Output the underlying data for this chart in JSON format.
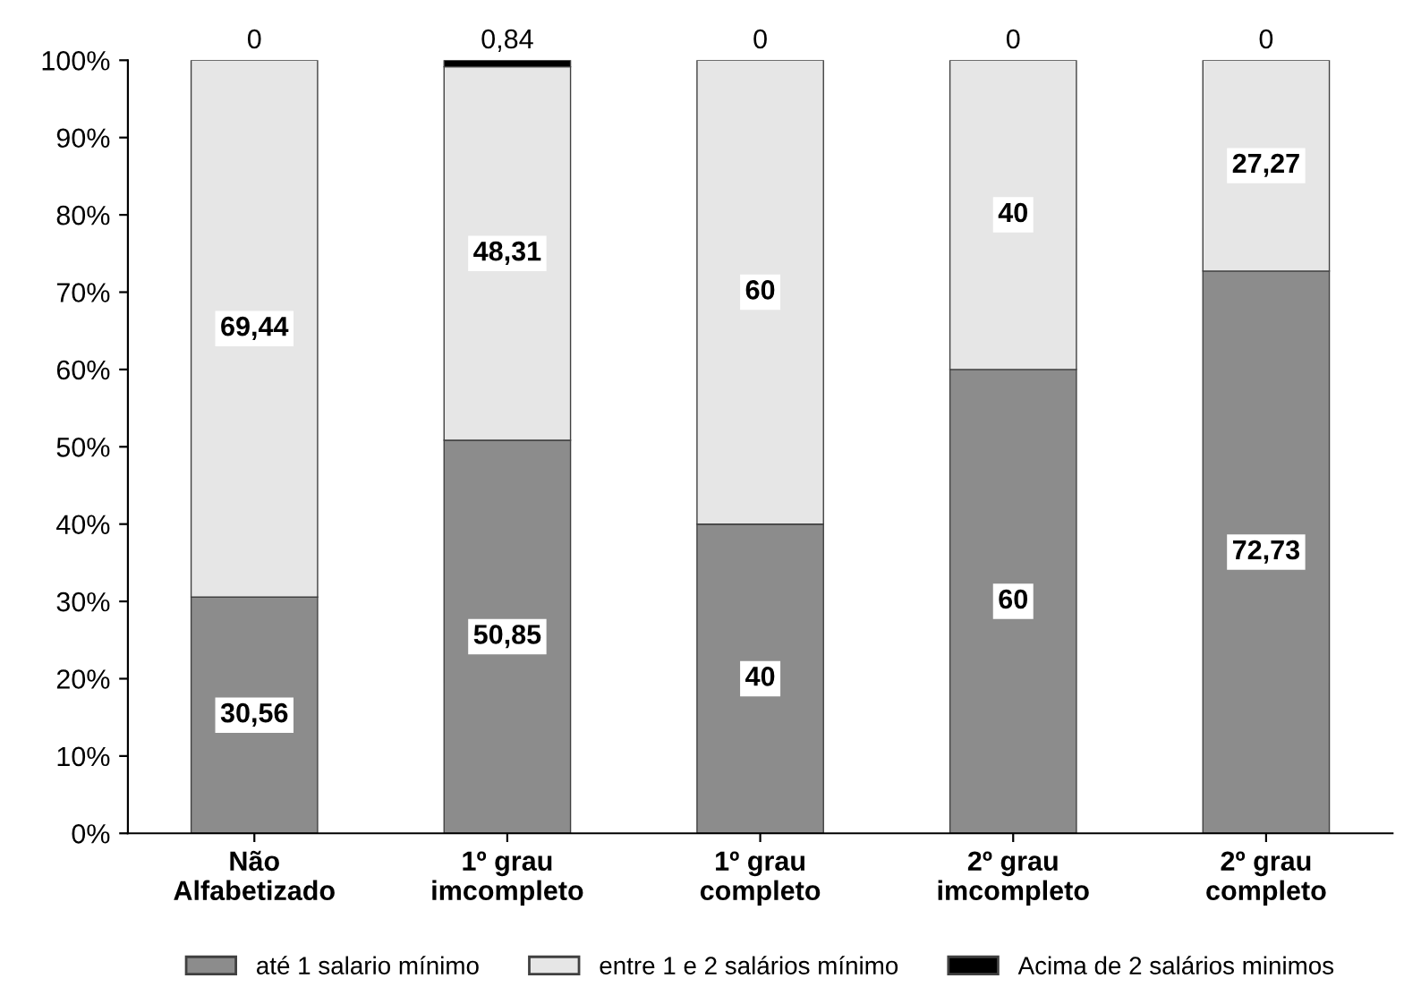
{
  "chart_data": {
    "type": "bar",
    "stacked": true,
    "categories": [
      "Não\nAlfabetizado",
      "1º grau\nimcompleto",
      "1º grau\ncompleto",
      "2º grau\nimcompleto",
      "2º grau\ncompleto"
    ],
    "series": [
      {
        "name": "até 1 salario mínimo",
        "color": "#8c8c8c",
        "values": [
          30.56,
          50.85,
          40,
          60,
          72.73
        ],
        "value_labels": [
          "30,56",
          "50,85",
          "40",
          "60",
          "72,73"
        ]
      },
      {
        "name": "entre 1 e 2 salários mínimo",
        "color": "#e6e6e6",
        "values": [
          69.44,
          48.31,
          60,
          40,
          27.27
        ],
        "value_labels": [
          "69,44",
          "48,31",
          "60",
          "40",
          "27,27"
        ]
      },
      {
        "name": "Acima de 2 salários minimos",
        "color": "#000000",
        "values": [
          0,
          0.84,
          0,
          0,
          0
        ],
        "value_labels": [
          "0",
          "0,84",
          "0",
          "0",
          "0"
        ]
      }
    ],
    "ylim": [
      0,
      100
    ],
    "yticks": [
      {
        "value": 0,
        "label": "0%"
      },
      {
        "value": 10,
        "label": "10%"
      },
      {
        "value": 20,
        "label": "20%"
      },
      {
        "value": 30,
        "label": "30%"
      },
      {
        "value": 40,
        "label": "40%"
      },
      {
        "value": 50,
        "label": "50%"
      },
      {
        "value": 60,
        "label": "60%"
      },
      {
        "value": 70,
        "label": "70%"
      },
      {
        "value": 80,
        "label": "80%"
      },
      {
        "value": 90,
        "label": "90%"
      },
      {
        "value": 100,
        "label": "100%"
      }
    ],
    "grid": false,
    "legend": "bottom"
  }
}
